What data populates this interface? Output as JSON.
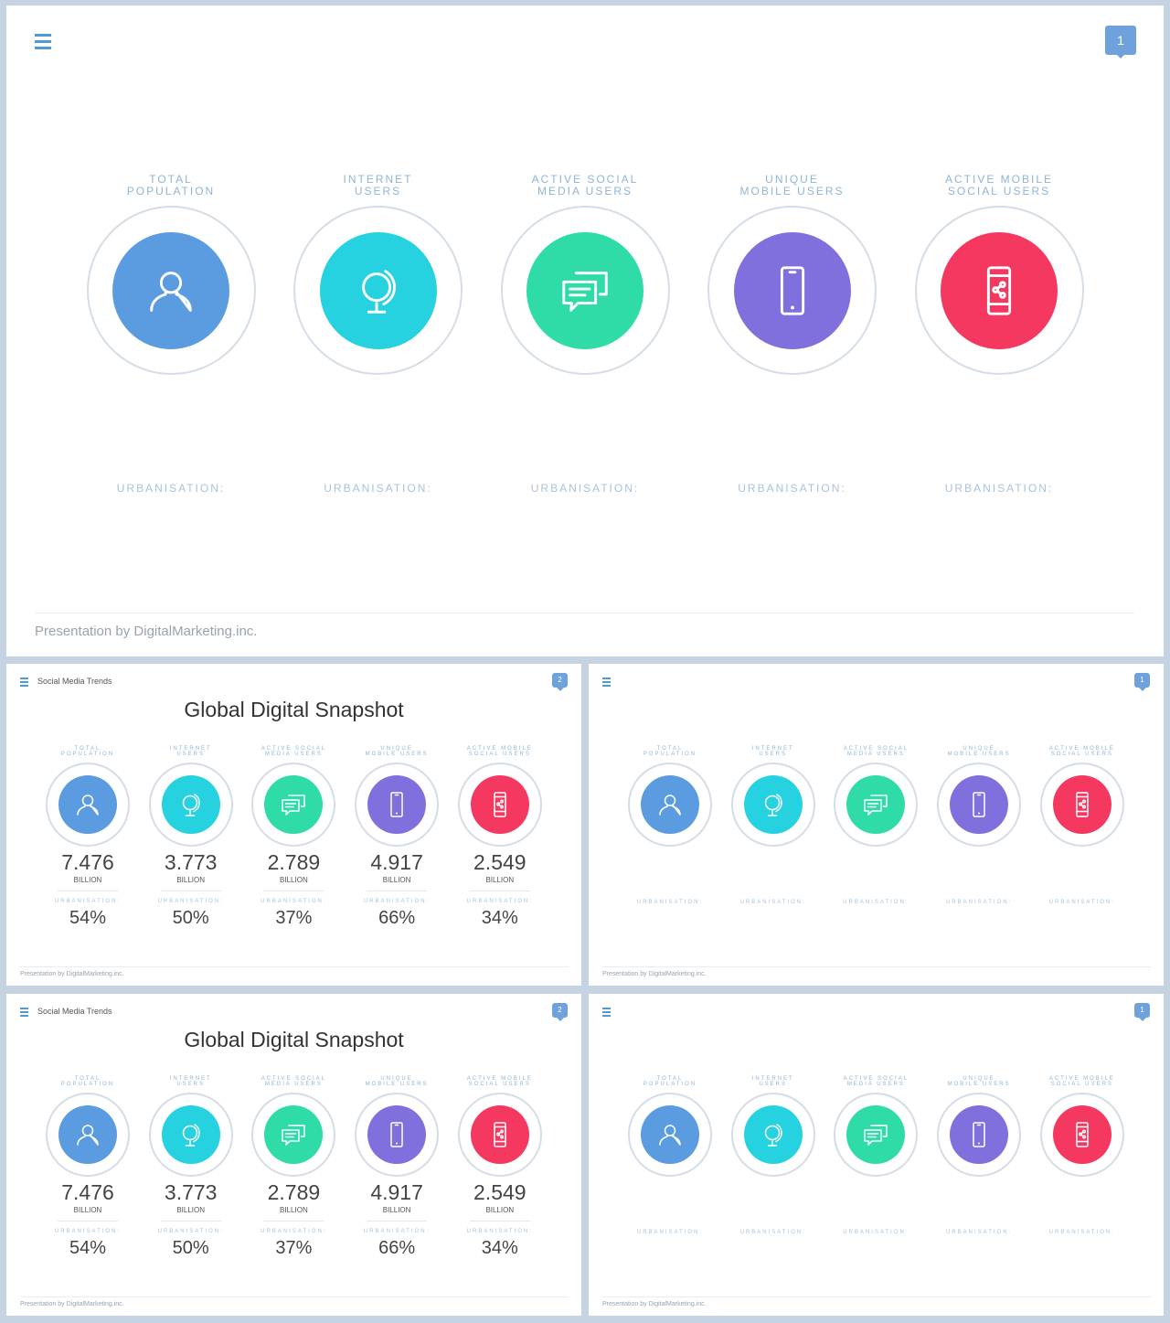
{
  "slides": {
    "main": {
      "badge": "1",
      "footer": "Presentation by DigitalMarketing.inc."
    },
    "stat": {
      "badge": "2",
      "title": "Social Media Trends",
      "heading": "Global Digital Snapshot",
      "footer": "Presentation by DigitalMarketing.inc."
    },
    "blank": {
      "badge": "1",
      "footer": "Presentation by DigitalMarketing.inc."
    }
  },
  "urbanisation_label": "URBANISATION:",
  "categories": [
    {
      "label": "TOTAL\nPOPULATION",
      "icon": "user-icon",
      "color": "#5b9be0",
      "value": "7.476",
      "unit": "BILLION",
      "urbanisation": "54%"
    },
    {
      "label": "INTERNET\nUSERS",
      "icon": "globe-icon",
      "color": "#26d2e0",
      "value": "3.773",
      "unit": "BILLION",
      "urbanisation": "50%"
    },
    {
      "label": "ACTIVE SOCIAL\nMEDIA USERS",
      "icon": "chat-icon",
      "color": "#2fdca7",
      "value": "2.789",
      "unit": "BILLION",
      "urbanisation": "37%"
    },
    {
      "label": "UNIQUE\nMOBILE USERS",
      "icon": "mobile-phone-icon",
      "color": "#8070de",
      "value": "4.917",
      "unit": "BILLION",
      "urbanisation": "66%"
    },
    {
      "label": "ACTIVE MOBILE\nSOCIAL USERS",
      "icon": "mobile-share-icon",
      "color": "#f5385f",
      "value": "2.549",
      "unit": "BILLION",
      "urbanisation": "34%"
    }
  ]
}
